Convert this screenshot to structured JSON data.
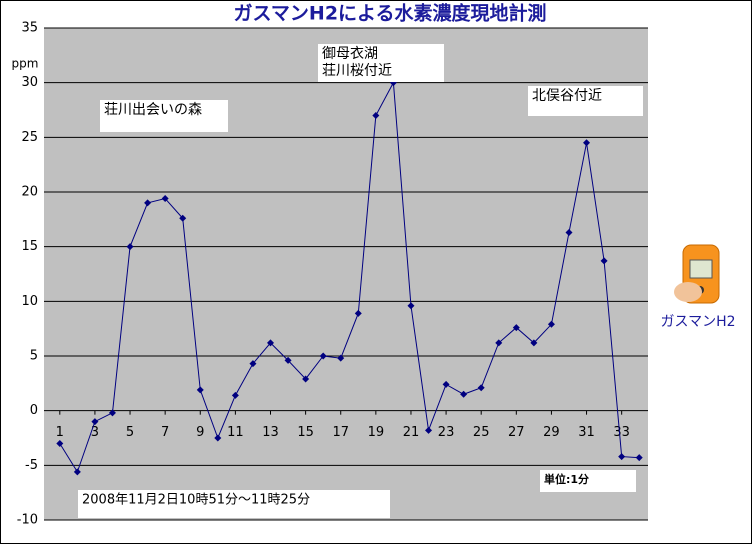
{
  "chart_data": {
    "type": "line",
    "title": "ガスマンH2による水素濃度現地計測",
    "y_unit": "ppm",
    "x": [
      1,
      2,
      3,
      4,
      5,
      6,
      7,
      8,
      9,
      10,
      11,
      12,
      13,
      14,
      15,
      16,
      17,
      18,
      19,
      20,
      21,
      22,
      23,
      24,
      25,
      26,
      27,
      28,
      29,
      30,
      31,
      32,
      33,
      34
    ],
    "series": [
      {
        "name": "ガスマンH2",
        "color": "#000080",
        "values": [
          -3.0,
          -5.6,
          -1.0,
          -0.2,
          15.0,
          19.0,
          19.4,
          17.6,
          1.9,
          -2.5,
          1.4,
          4.3,
          6.2,
          4.6,
          2.9,
          5.0,
          4.8,
          8.9,
          27.0,
          30.0,
          9.6,
          -1.8,
          2.4,
          1.5,
          2.1,
          6.2,
          7.6,
          6.2,
          7.9,
          16.3,
          24.5,
          13.7,
          -4.2,
          -4.3
        ]
      }
    ],
    "xlim": [
      0.1,
      34.5
    ],
    "xticks": [
      1,
      3,
      5,
      7,
      9,
      11,
      13,
      15,
      17,
      19,
      21,
      23,
      25,
      27,
      29,
      31,
      33
    ],
    "ylim": [
      -10,
      35
    ],
    "yticks": [
      -10,
      -5,
      0,
      5,
      10,
      15,
      20,
      25,
      30,
      35
    ],
    "grid": true,
    "plot_background": "#c0c0c0",
    "annotations": [
      {
        "lines": [
          "荘川出会いの森"
        ]
      },
      {
        "lines": [
          "御母衣湖",
          "荘川桜付近"
        ]
      },
      {
        "lines": [
          "北俣谷付近"
        ]
      },
      {
        "lines": [
          "単位:1分"
        ]
      },
      {
        "lines": [
          "2008年11月2日10時51分～11時25分"
        ]
      }
    ]
  }
}
